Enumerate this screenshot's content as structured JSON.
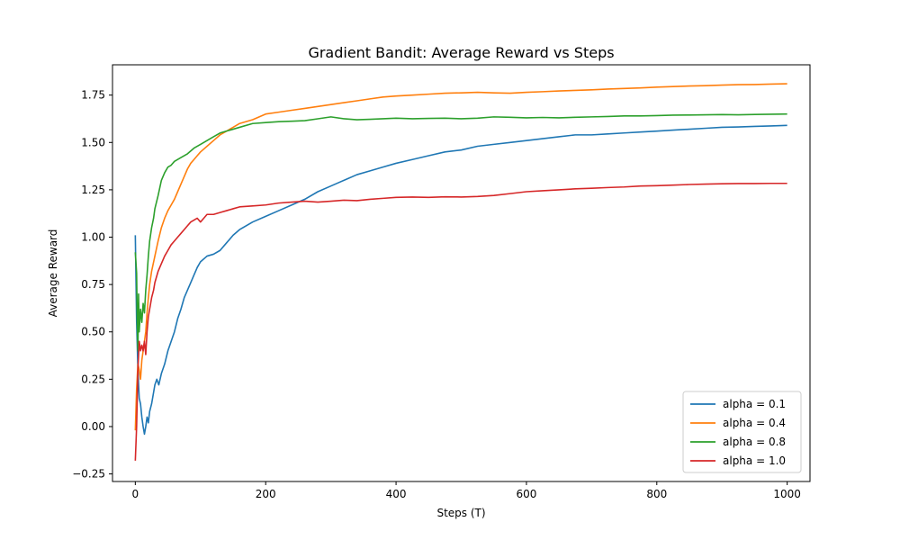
{
  "chart_data": {
    "type": "line",
    "title": "Gradient Bandit: Average Reward vs Steps",
    "xlabel": "Steps (T)",
    "ylabel": "Average Reward",
    "xlim": [
      -35,
      1035
    ],
    "ylim": [
      -0.29,
      1.91
    ],
    "xticks": [
      0,
      200,
      400,
      600,
      800,
      1000
    ],
    "yticks": [
      -0.25,
      0.0,
      0.25,
      0.5,
      0.75,
      1.0,
      1.25,
      1.5,
      1.75
    ],
    "xtick_labels": [
      "0",
      "200",
      "400",
      "600",
      "800",
      "1000"
    ],
    "ytick_labels": [
      "−0.25",
      "0.00",
      "0.25",
      "0.50",
      "0.75",
      "1.00",
      "1.25",
      "1.50",
      "1.75"
    ],
    "grid": false,
    "legend_position": "lower-right",
    "series": [
      {
        "name": "alpha = 0.1",
        "color": "#1f77b4",
        "points": [
          [
            0,
            1.01
          ],
          [
            2,
            0.55
          ],
          [
            4,
            0.3
          ],
          [
            6,
            0.15
          ],
          [
            8,
            0.12
          ],
          [
            10,
            0.05
          ],
          [
            12,
            0.0
          ],
          [
            14,
            -0.04
          ],
          [
            16,
            0.0
          ],
          [
            18,
            0.05
          ],
          [
            20,
            0.02
          ],
          [
            22,
            0.08
          ],
          [
            25,
            0.12
          ],
          [
            28,
            0.18
          ],
          [
            30,
            0.22
          ],
          [
            33,
            0.25
          ],
          [
            36,
            0.22
          ],
          [
            40,
            0.28
          ],
          [
            45,
            0.33
          ],
          [
            50,
            0.4
          ],
          [
            55,
            0.45
          ],
          [
            60,
            0.5
          ],
          [
            65,
            0.57
          ],
          [
            70,
            0.62
          ],
          [
            75,
            0.68
          ],
          [
            80,
            0.72
          ],
          [
            85,
            0.76
          ],
          [
            90,
            0.8
          ],
          [
            95,
            0.84
          ],
          [
            100,
            0.87
          ],
          [
            110,
            0.9
          ],
          [
            120,
            0.91
          ],
          [
            130,
            0.93
          ],
          [
            140,
            0.97
          ],
          [
            150,
            1.01
          ],
          [
            160,
            1.04
          ],
          [
            180,
            1.08
          ],
          [
            200,
            1.11
          ],
          [
            220,
            1.14
          ],
          [
            240,
            1.17
          ],
          [
            260,
            1.2
          ],
          [
            280,
            1.24
          ],
          [
            300,
            1.27
          ],
          [
            320,
            1.3
          ],
          [
            340,
            1.33
          ],
          [
            360,
            1.35
          ],
          [
            380,
            1.37
          ],
          [
            400,
            1.39
          ],
          [
            425,
            1.41
          ],
          [
            450,
            1.43
          ],
          [
            475,
            1.45
          ],
          [
            500,
            1.46
          ],
          [
            525,
            1.48
          ],
          [
            550,
            1.49
          ],
          [
            575,
            1.5
          ],
          [
            600,
            1.51
          ],
          [
            625,
            1.52
          ],
          [
            650,
            1.53
          ],
          [
            675,
            1.54
          ],
          [
            700,
            1.54
          ],
          [
            725,
            1.545
          ],
          [
            750,
            1.55
          ],
          [
            775,
            1.555
          ],
          [
            800,
            1.56
          ],
          [
            825,
            1.565
          ],
          [
            850,
            1.57
          ],
          [
            875,
            1.575
          ],
          [
            900,
            1.58
          ],
          [
            925,
            1.582
          ],
          [
            950,
            1.585
          ],
          [
            975,
            1.587
          ],
          [
            1000,
            1.59
          ]
        ]
      },
      {
        "name": "alpha = 0.4",
        "color": "#ff7f0e",
        "points": [
          [
            0,
            -0.02
          ],
          [
            2,
            0.2
          ],
          [
            4,
            0.33
          ],
          [
            6,
            0.3
          ],
          [
            8,
            0.25
          ],
          [
            10,
            0.35
          ],
          [
            12,
            0.4
          ],
          [
            14,
            0.45
          ],
          [
            16,
            0.5
          ],
          [
            18,
            0.6
          ],
          [
            20,
            0.68
          ],
          [
            22,
            0.75
          ],
          [
            25,
            0.82
          ],
          [
            30,
            0.9
          ],
          [
            35,
            0.98
          ],
          [
            40,
            1.05
          ],
          [
            45,
            1.1
          ],
          [
            50,
            1.14
          ],
          [
            55,
            1.17
          ],
          [
            60,
            1.2
          ],
          [
            65,
            1.24
          ],
          [
            70,
            1.28
          ],
          [
            75,
            1.32
          ],
          [
            80,
            1.36
          ],
          [
            85,
            1.39
          ],
          [
            90,
            1.41
          ],
          [
            95,
            1.43
          ],
          [
            100,
            1.45
          ],
          [
            110,
            1.48
          ],
          [
            120,
            1.51
          ],
          [
            130,
            1.54
          ],
          [
            140,
            1.56
          ],
          [
            150,
            1.58
          ],
          [
            160,
            1.6
          ],
          [
            180,
            1.62
          ],
          [
            200,
            1.65
          ],
          [
            220,
            1.66
          ],
          [
            240,
            1.67
          ],
          [
            260,
            1.68
          ],
          [
            280,
            1.69
          ],
          [
            300,
            1.7
          ],
          [
            320,
            1.71
          ],
          [
            340,
            1.72
          ],
          [
            360,
            1.73
          ],
          [
            380,
            1.74
          ],
          [
            400,
            1.745
          ],
          [
            425,
            1.75
          ],
          [
            450,
            1.755
          ],
          [
            475,
            1.76
          ],
          [
            500,
            1.762
          ],
          [
            525,
            1.765
          ],
          [
            550,
            1.762
          ],
          [
            575,
            1.76
          ],
          [
            600,
            1.765
          ],
          [
            625,
            1.768
          ],
          [
            650,
            1.772
          ],
          [
            675,
            1.775
          ],
          [
            700,
            1.778
          ],
          [
            725,
            1.782
          ],
          [
            750,
            1.785
          ],
          [
            775,
            1.788
          ],
          [
            800,
            1.792
          ],
          [
            825,
            1.795
          ],
          [
            850,
            1.798
          ],
          [
            875,
            1.8
          ],
          [
            900,
            1.803
          ],
          [
            925,
            1.805
          ],
          [
            950,
            1.806
          ],
          [
            975,
            1.808
          ],
          [
            1000,
            1.81
          ]
        ]
      },
      {
        "name": "alpha = 0.8",
        "color": "#2ca02c",
        "points": [
          [
            0,
            0.92
          ],
          [
            2,
            0.81
          ],
          [
            3,
            0.55
          ],
          [
            4,
            0.4
          ],
          [
            5,
            0.7
          ],
          [
            6,
            0.5
          ],
          [
            8,
            0.62
          ],
          [
            10,
            0.55
          ],
          [
            12,
            0.65
          ],
          [
            14,
            0.6
          ],
          [
            16,
            0.72
          ],
          [
            18,
            0.8
          ],
          [
            20,
            0.9
          ],
          [
            22,
            0.98
          ],
          [
            25,
            1.05
          ],
          [
            28,
            1.1
          ],
          [
            30,
            1.15
          ],
          [
            35,
            1.22
          ],
          [
            40,
            1.3
          ],
          [
            45,
            1.34
          ],
          [
            50,
            1.37
          ],
          [
            55,
            1.38
          ],
          [
            60,
            1.4
          ],
          [
            70,
            1.42
          ],
          [
            80,
            1.44
          ],
          [
            90,
            1.47
          ],
          [
            100,
            1.49
          ],
          [
            110,
            1.51
          ],
          [
            120,
            1.53
          ],
          [
            130,
            1.55
          ],
          [
            140,
            1.56
          ],
          [
            150,
            1.57
          ],
          [
            160,
            1.58
          ],
          [
            180,
            1.6
          ],
          [
            200,
            1.605
          ],
          [
            220,
            1.61
          ],
          [
            240,
            1.612
          ],
          [
            260,
            1.615
          ],
          [
            280,
            1.625
          ],
          [
            300,
            1.635
          ],
          [
            320,
            1.625
          ],
          [
            340,
            1.62
          ],
          [
            360,
            1.622
          ],
          [
            380,
            1.625
          ],
          [
            400,
            1.628
          ],
          [
            425,
            1.625
          ],
          [
            450,
            1.627
          ],
          [
            475,
            1.628
          ],
          [
            500,
            1.625
          ],
          [
            525,
            1.628
          ],
          [
            550,
            1.635
          ],
          [
            575,
            1.633
          ],
          [
            600,
            1.63
          ],
          [
            625,
            1.632
          ],
          [
            650,
            1.63
          ],
          [
            675,
            1.633
          ],
          [
            700,
            1.635
          ],
          [
            725,
            1.637
          ],
          [
            750,
            1.64
          ],
          [
            775,
            1.64
          ],
          [
            800,
            1.642
          ],
          [
            825,
            1.644
          ],
          [
            850,
            1.645
          ],
          [
            875,
            1.646
          ],
          [
            900,
            1.647
          ],
          [
            925,
            1.646
          ],
          [
            950,
            1.648
          ],
          [
            975,
            1.649
          ],
          [
            1000,
            1.65
          ]
        ]
      },
      {
        "name": "alpha = 1.0",
        "color": "#d62728",
        "points": [
          [
            0,
            -0.18
          ],
          [
            2,
            0.0
          ],
          [
            4,
            0.3
          ],
          [
            6,
            0.45
          ],
          [
            8,
            0.4
          ],
          [
            10,
            0.43
          ],
          [
            12,
            0.4
          ],
          [
            14,
            0.45
          ],
          [
            16,
            0.38
          ],
          [
            18,
            0.5
          ],
          [
            20,
            0.58
          ],
          [
            22,
            0.62
          ],
          [
            25,
            0.68
          ],
          [
            28,
            0.72
          ],
          [
            30,
            0.76
          ],
          [
            35,
            0.82
          ],
          [
            40,
            0.86
          ],
          [
            45,
            0.9
          ],
          [
            50,
            0.93
          ],
          [
            55,
            0.96
          ],
          [
            60,
            0.98
          ],
          [
            65,
            1.0
          ],
          [
            70,
            1.02
          ],
          [
            75,
            1.04
          ],
          [
            80,
            1.06
          ],
          [
            85,
            1.08
          ],
          [
            90,
            1.09
          ],
          [
            95,
            1.1
          ],
          [
            100,
            1.08
          ],
          [
            105,
            1.1
          ],
          [
            110,
            1.12
          ],
          [
            120,
            1.12
          ],
          [
            130,
            1.13
          ],
          [
            140,
            1.14
          ],
          [
            150,
            1.15
          ],
          [
            160,
            1.16
          ],
          [
            180,
            1.165
          ],
          [
            200,
            1.17
          ],
          [
            220,
            1.18
          ],
          [
            240,
            1.185
          ],
          [
            260,
            1.19
          ],
          [
            280,
            1.185
          ],
          [
            300,
            1.19
          ],
          [
            320,
            1.195
          ],
          [
            340,
            1.193
          ],
          [
            360,
            1.2
          ],
          [
            380,
            1.205
          ],
          [
            400,
            1.21
          ],
          [
            425,
            1.212
          ],
          [
            450,
            1.21
          ],
          [
            475,
            1.213
          ],
          [
            500,
            1.212
          ],
          [
            525,
            1.215
          ],
          [
            550,
            1.22
          ],
          [
            575,
            1.23
          ],
          [
            600,
            1.24
          ],
          [
            625,
            1.245
          ],
          [
            650,
            1.25
          ],
          [
            675,
            1.255
          ],
          [
            700,
            1.258
          ],
          [
            725,
            1.262
          ],
          [
            750,
            1.265
          ],
          [
            775,
            1.27
          ],
          [
            800,
            1.272
          ],
          [
            825,
            1.275
          ],
          [
            850,
            1.278
          ],
          [
            875,
            1.28
          ],
          [
            900,
            1.282
          ],
          [
            925,
            1.283
          ],
          [
            950,
            1.283
          ],
          [
            975,
            1.284
          ],
          [
            1000,
            1.284
          ]
        ]
      }
    ]
  }
}
